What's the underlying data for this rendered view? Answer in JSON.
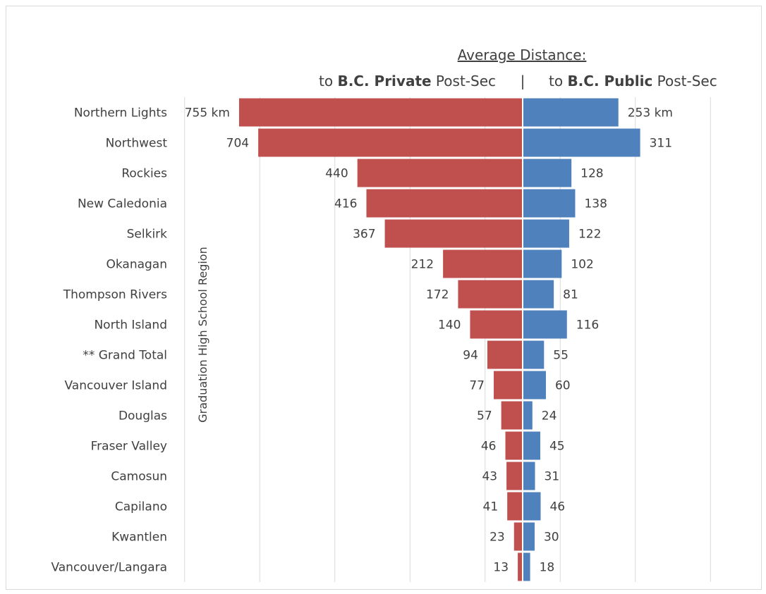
{
  "chart_data": {
    "type": "bar",
    "orientation": "horizontal-diverging",
    "title": "Average Distance:",
    "header_left": {
      "prefix": "to ",
      "bold": "B.C. Private",
      "suffix": " Post-Sec"
    },
    "header_separator": "|",
    "header_right": {
      "prefix": "to ",
      "bold": "B.C. Public",
      "suffix": " Post-Sec"
    },
    "ylabel": "Graduation High School Region",
    "unit_suffix": " km",
    "categories": [
      "Northern Lights",
      "Northwest",
      "Rockies",
      "New Caledonia",
      "Selkirk",
      "Okanagan",
      "Thompson Rivers",
      "North Island",
      "** Grand Total",
      "Vancouver Island",
      "Douglas",
      "Fraser Valley",
      "Camosun",
      "Capilano",
      "Kwantlen",
      "Vancouver/Langara"
    ],
    "series": [
      {
        "values": [
          755,
          704,
          440,
          416,
          367,
          212,
          172,
          140,
          94,
          77,
          57,
          46,
          43,
          41,
          23,
          13
        ],
        "color": "#c0504d",
        "side": "left"
      },
      {
        "values": [
          253,
          311,
          128,
          138,
          122,
          102,
          81,
          116,
          55,
          60,
          24,
          45,
          31,
          46,
          30,
          18
        ],
        "color": "#4f81bd",
        "side": "right"
      }
    ],
    "xlim": [
      -900,
      600
    ],
    "grid": true,
    "legend": "none"
  }
}
